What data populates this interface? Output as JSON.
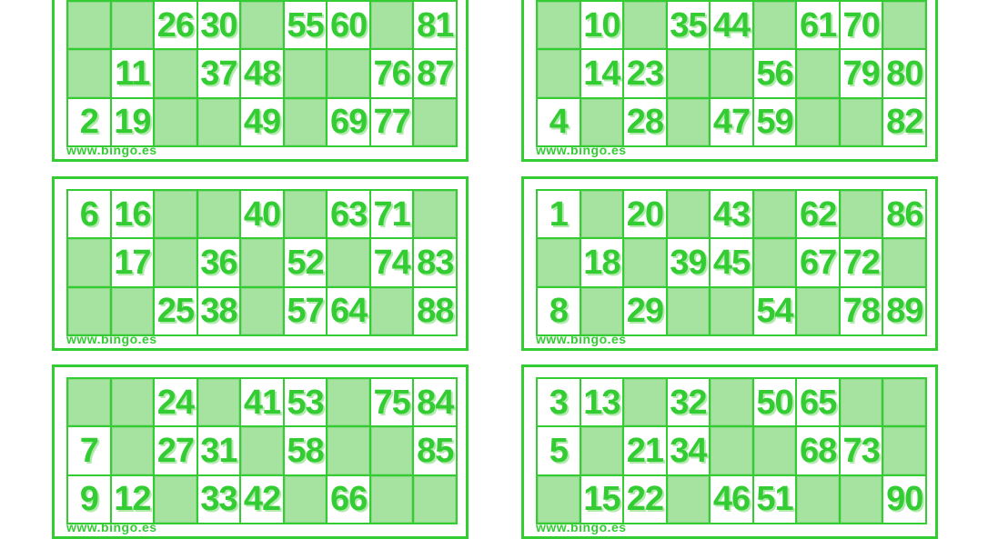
{
  "sheet": {
    "site_label": "www.bingo.es",
    "colors": {
      "accent_green": "#33cc33",
      "blank_cell_green": "#a6e3a0",
      "number_shadow_green": "#b2e9ad",
      "card_background": "#ffffff"
    },
    "cards": [
      {
        "name": "card-top-left",
        "grid": [
          [
            null,
            null,
            26,
            30,
            null,
            55,
            60,
            null,
            81
          ],
          [
            null,
            11,
            null,
            37,
            48,
            null,
            null,
            76,
            87
          ],
          [
            2,
            19,
            null,
            null,
            49,
            null,
            69,
            77,
            null
          ]
        ]
      },
      {
        "name": "card-top-right",
        "grid": [
          [
            null,
            10,
            null,
            35,
            44,
            null,
            61,
            70,
            null
          ],
          [
            null,
            14,
            23,
            null,
            null,
            56,
            null,
            79,
            80
          ],
          [
            4,
            null,
            28,
            null,
            47,
            59,
            null,
            null,
            82
          ]
        ]
      },
      {
        "name": "card-middle-left",
        "grid": [
          [
            6,
            16,
            null,
            null,
            40,
            null,
            63,
            71,
            null
          ],
          [
            null,
            17,
            null,
            36,
            null,
            52,
            null,
            74,
            83
          ],
          [
            null,
            null,
            25,
            38,
            null,
            57,
            64,
            null,
            88
          ]
        ]
      },
      {
        "name": "card-middle-right",
        "grid": [
          [
            1,
            null,
            20,
            null,
            43,
            null,
            62,
            null,
            86
          ],
          [
            null,
            18,
            null,
            39,
            45,
            null,
            67,
            72,
            null
          ],
          [
            8,
            null,
            29,
            null,
            null,
            54,
            null,
            78,
            89
          ]
        ]
      },
      {
        "name": "card-bottom-left",
        "grid": [
          [
            null,
            null,
            24,
            null,
            41,
            53,
            null,
            75,
            84
          ],
          [
            7,
            null,
            27,
            31,
            null,
            58,
            null,
            null,
            85
          ],
          [
            9,
            12,
            null,
            33,
            42,
            null,
            66,
            null,
            null
          ]
        ]
      },
      {
        "name": "card-bottom-right",
        "grid": [
          [
            3,
            13,
            null,
            32,
            null,
            50,
            65,
            null,
            null
          ],
          [
            5,
            null,
            21,
            34,
            null,
            null,
            68,
            73,
            null
          ],
          [
            null,
            15,
            22,
            null,
            46,
            51,
            null,
            null,
            90
          ]
        ]
      }
    ]
  }
}
